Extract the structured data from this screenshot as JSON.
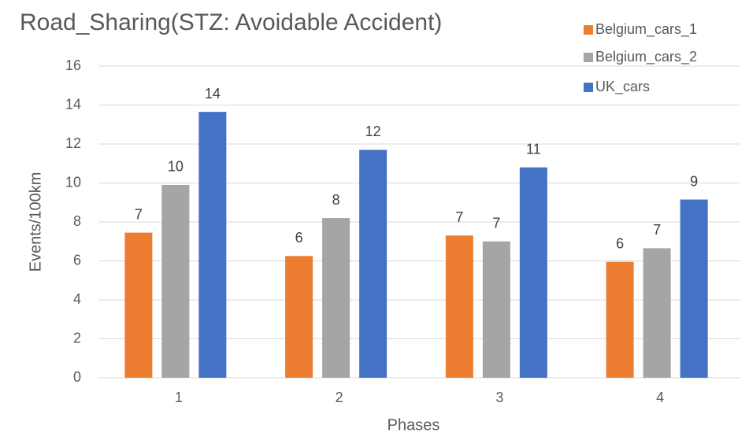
{
  "chart_data": {
    "type": "bar",
    "title": "Road_Sharing(STZ: Avoidable Accident)",
    "x_label": "Phases",
    "y_label": "Events/100km",
    "categories": [
      "1",
      "2",
      "3",
      "4"
    ],
    "series": [
      {
        "name": "Belgium_cars_1",
        "color": "#ed7d31",
        "values": [
          7.45,
          6.25,
          7.3,
          5.95
        ],
        "value_labels": [
          "7",
          "6",
          "7",
          "6"
        ]
      },
      {
        "name": "Belgium_cars_2",
        "color": "#a5a5a5",
        "values": [
          9.9,
          8.2,
          7.0,
          6.65
        ],
        "value_labels": [
          "10",
          "8",
          "7",
          "7"
        ]
      },
      {
        "name": "UK_cars",
        "color": "#4472c4",
        "values": [
          13.65,
          11.7,
          10.8,
          9.15
        ],
        "value_labels": [
          "14",
          "12",
          "11",
          "9"
        ]
      }
    ],
    "ylim": [
      0,
      16
    ],
    "yticks": [
      0,
      2,
      4,
      6,
      8,
      10,
      12,
      14,
      16
    ],
    "grid": true,
    "legend": "top-right"
  }
}
